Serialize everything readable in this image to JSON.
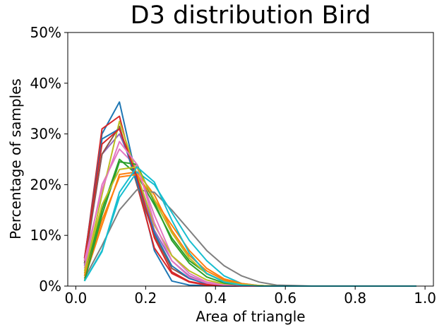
{
  "chart_data": {
    "type": "line",
    "title": "D3 distribution Bird",
    "xlabel": "Area of triangle",
    "ylabel": "Percentage of samples",
    "xlim": [
      -0.023,
      1.024
    ],
    "ylim": [
      0,
      50
    ],
    "xticks": [
      0.0,
      0.2,
      0.4,
      0.6,
      0.8,
      1.0
    ],
    "xtick_labels": [
      "0.0",
      "0.2",
      "0.4",
      "0.6",
      "0.8",
      "1.0"
    ],
    "yticks": [
      0,
      10,
      20,
      30,
      40,
      50
    ],
    "ytick_labels": [
      "0%",
      "10%",
      "20%",
      "30%",
      "40%",
      "50%"
    ],
    "grid": false,
    "x": [
      0.025,
      0.075,
      0.125,
      0.175,
      0.225,
      0.275,
      0.325,
      0.375,
      0.425,
      0.475,
      0.525,
      0.575,
      0.625,
      0.675,
      0.725,
      0.775,
      0.825,
      0.875,
      0.925,
      0.975
    ],
    "series": [
      {
        "color": "#1f77b4",
        "values": [
          4.5,
          30.0,
          36.3,
          21.0,
          7.0,
          1.0,
          0.2,
          0.1,
          0,
          0,
          0,
          0,
          0,
          0,
          0,
          0,
          0,
          0,
          0,
          0
        ]
      },
      {
        "color": "#ff7f0e",
        "values": [
          1.5,
          12.0,
          22.0,
          22.5,
          18.0,
          11.0,
          6.0,
          3.0,
          1.2,
          0.4,
          0.1,
          0,
          0,
          0,
          0,
          0,
          0,
          0,
          0,
          0
        ]
      },
      {
        "color": "#2ca02c",
        "values": [
          2.0,
          15.0,
          25.0,
          22.0,
          16.0,
          9.5,
          5.0,
          2.5,
          0.9,
          0.3,
          0.1,
          0,
          0,
          0,
          0,
          0,
          0,
          0,
          0,
          0
        ]
      },
      {
        "color": "#d62728",
        "values": [
          5.0,
          31.0,
          33.5,
          20.0,
          7.5,
          2.5,
          0.8,
          0.2,
          0.1,
          0,
          0,
          0,
          0,
          0,
          0,
          0,
          0,
          0,
          0,
          0
        ]
      },
      {
        "color": "#9467bd",
        "values": [
          4.0,
          26.0,
          30.0,
          22.0,
          11.0,
          5.0,
          2.0,
          0.6,
          0.2,
          0,
          0,
          0,
          0,
          0,
          0,
          0,
          0,
          0,
          0,
          0
        ]
      },
      {
        "color": "#8c564b",
        "values": [
          4.5,
          26.0,
          31.5,
          20.0,
          10.0,
          3.5,
          1.5,
          0.5,
          0.1,
          0,
          0,
          0,
          0,
          0,
          0,
          0,
          0,
          0,
          0,
          0
        ]
      },
      {
        "color": "#e377c2",
        "values": [
          3.5,
          20.0,
          27.0,
          23.5,
          14.0,
          6.0,
          2.5,
          0.8,
          0.3,
          0.1,
          0,
          0,
          0,
          0,
          0,
          0,
          0,
          0,
          0,
          0
        ]
      },
      {
        "color": "#7f7f7f",
        "values": [
          1.5,
          8.0,
          15.0,
          19.0,
          18.5,
          15.0,
          11.0,
          7.0,
          4.0,
          2.0,
          0.8,
          0.2,
          0.1,
          0,
          0,
          0,
          0,
          0,
          0,
          0
        ]
      },
      {
        "color": "#bcbd22",
        "values": [
          2.5,
          18.0,
          32.5,
          22.0,
          12.0,
          6.0,
          3.0,
          1.2,
          0.4,
          0.1,
          0,
          0,
          0,
          0,
          0,
          0,
          0,
          0,
          0,
          0
        ]
      },
      {
        "color": "#17becf",
        "values": [
          1.0,
          7.0,
          17.5,
          22.5,
          20.0,
          14.5,
          9.0,
          5.0,
          2.0,
          0.5,
          0.1,
          0,
          0,
          0,
          0,
          0,
          0,
          0,
          0,
          0
        ]
      },
      {
        "color": "#1f77b4",
        "values": [
          5.5,
          29.0,
          31.0,
          20.5,
          10.5,
          4.0,
          1.5,
          0.4,
          0.1,
          0,
          0,
          0,
          0,
          0,
          0,
          0,
          0,
          0,
          0,
          0
        ]
      },
      {
        "color": "#ff7f0e",
        "values": [
          2.0,
          13.0,
          21.5,
          22.0,
          17.0,
          12.0,
          7.0,
          3.5,
          1.4,
          0.5,
          0.1,
          0,
          0,
          0,
          0,
          0,
          0,
          0,
          0,
          0
        ]
      },
      {
        "color": "#2ca02c",
        "values": [
          1.0,
          14.0,
          24.5,
          24.0,
          16.5,
          9.0,
          4.5,
          1.8,
          0.6,
          0.2,
          0,
          0,
          0,
          0,
          0,
          0,
          0,
          0,
          0,
          0
        ]
      },
      {
        "color": "#d62728",
        "values": [
          5.5,
          28.0,
          31.0,
          21.5,
          9.5,
          2.8,
          0.9,
          0.3,
          0.1,
          0,
          0,
          0,
          0,
          0,
          0,
          0,
          0,
          0,
          0,
          0
        ]
      },
      {
        "color": "#e377c2",
        "values": [
          5.0,
          19.0,
          28.5,
          24.0,
          12.5,
          5.0,
          1.8,
          0.6,
          0.2,
          0,
          0,
          0,
          0,
          0,
          0,
          0,
          0,
          0,
          0,
          0
        ]
      },
      {
        "color": "#bcbd22",
        "values": [
          3.0,
          16.0,
          23.0,
          23.5,
          17.0,
          10.5,
          5.5,
          2.4,
          0.9,
          0.3,
          0.1,
          0,
          0,
          0,
          0,
          0,
          0,
          0,
          0,
          0
        ]
      },
      {
        "color": "#17becf",
        "values": [
          1.0,
          6.8,
          18.5,
          23.5,
          20.5,
          13.0,
          6.5,
          2.5,
          0.8,
          0.2,
          0,
          0,
          0,
          0,
          0,
          0,
          0,
          0,
          0,
          0
        ]
      }
    ]
  }
}
